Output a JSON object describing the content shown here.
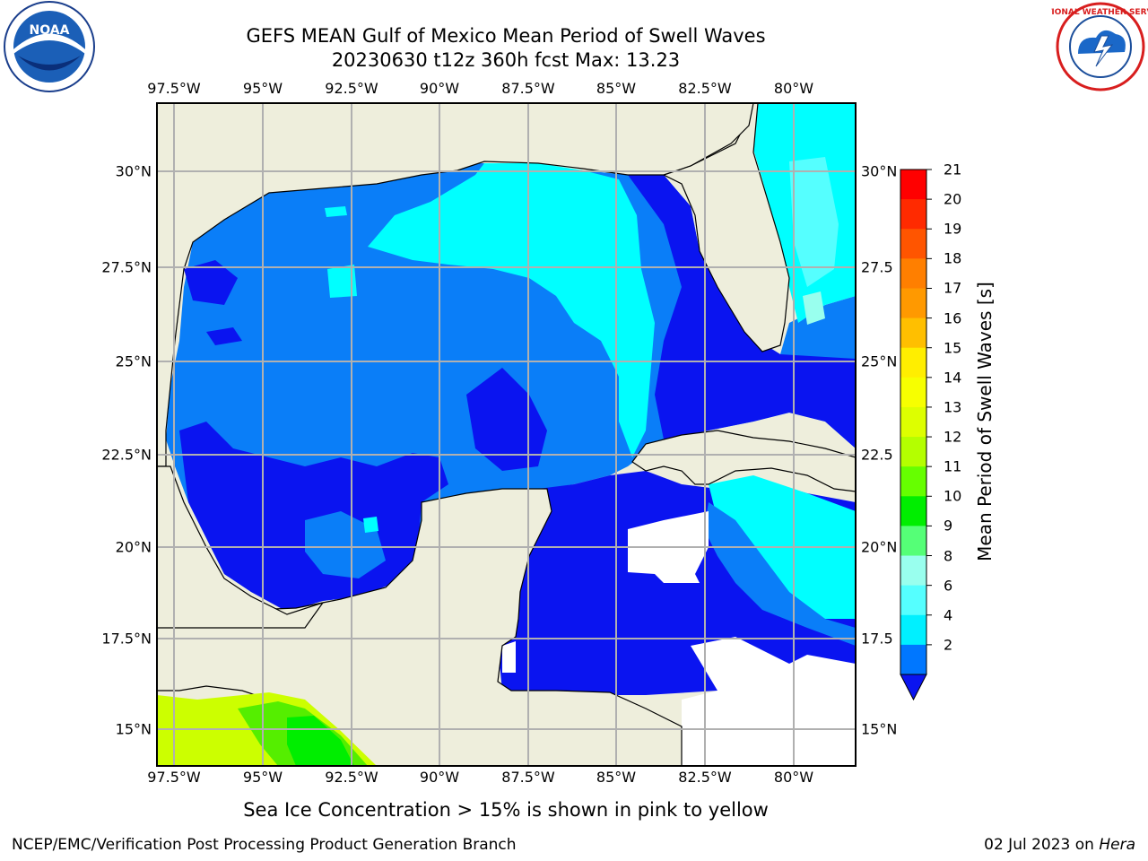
{
  "title_line1": "GEFS MEAN Gulf of Mexico Mean Period of Swell Waves",
  "title_line2": "20230630 t12z 360h fcst   Max: 13.23",
  "subtitle_note": "Sea Ice Concentration > 15% is shown in pink to yellow",
  "footer_left": "NCEP/EMC/Verification Post Processing Product Generation Branch",
  "footer_date": "02 Jul 2023 on ",
  "footer_host": "Hera",
  "logos": {
    "noaa": "NOAA",
    "nws": "NATIONAL WEATHER SERVICE"
  },
  "lon_ticks": [
    "97.5°W",
    "95°W",
    "92.5°W",
    "90°W",
    "87.5°W",
    "85°W",
    "82.5°W",
    "80°W"
  ],
  "lat_ticks_left": [
    "30°N",
    "27.5°N",
    "25°N",
    "22.5°N",
    "20°N",
    "17.5°N",
    "15°N"
  ],
  "lat_ticks_right": [
    "30°N",
    "27.5",
    "25°N",
    "22.5",
    "20°N",
    "17.5",
    "15°N"
  ],
  "colorbar": {
    "label": "Mean Period of Swell Waves [s]",
    "ticks": [
      "21",
      "20",
      "19",
      "18",
      "17",
      "16",
      "15",
      "14",
      "13",
      "12",
      "11",
      "10",
      "9",
      "8",
      "6",
      "4",
      "2"
    ],
    "colors": [
      "#ff0000",
      "#ff2a00",
      "#ff5500",
      "#ff7f00",
      "#ff9900",
      "#ffbf00",
      "#ffee00",
      "#f7ff00",
      "#ddff00",
      "#b4ff00",
      "#66ff00",
      "#00ee00",
      "#55ff77",
      "#99ffee",
      "#55ffff",
      "#00f0ff",
      "#0077ff"
    ],
    "extend_color": "#0a14f0"
  },
  "palette": {
    "land": "#eeeedc",
    "no_data": "#ffffff",
    "deep_blue": "#0a14f0",
    "mid_blue": "#0a7ef8",
    "cyan": "#00ffff",
    "light_cyan": "#55ffff",
    "pale_cyan": "#99ffee",
    "yellow_green": "#ccff00",
    "green": "#55ee00",
    "grid": "#b0b0b0"
  }
}
